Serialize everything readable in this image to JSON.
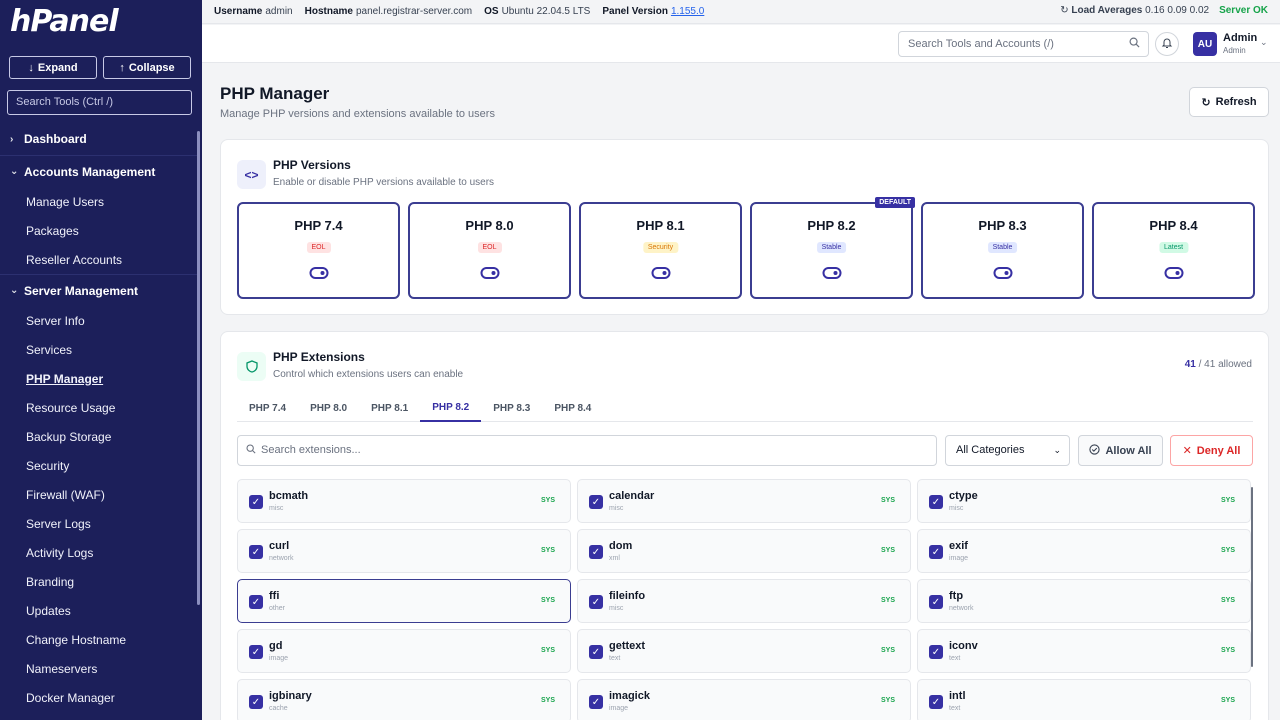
{
  "app": {
    "logo": "hPanel"
  },
  "sidebar": {
    "expand_label": "Expand",
    "collapse_label": "Collapse",
    "search_placeholder": "Search Tools (Ctrl /)",
    "dashboard": "Dashboard",
    "accounts_heading": "Accounts Management",
    "accounts_items": [
      "Manage Users",
      "Packages",
      "Reseller Accounts"
    ],
    "server_heading": "Server Management",
    "server_items": [
      "Server Info",
      "Services",
      "PHP Manager",
      "Resource Usage",
      "Backup Storage",
      "Security",
      "Firewall (WAF)",
      "Server Logs",
      "Activity Logs",
      "Branding",
      "Updates",
      "Change Hostname",
      "Nameservers",
      "Docker Manager"
    ],
    "active_item": "PHP Manager"
  },
  "topbar": {
    "username_label": "Username",
    "username": "admin",
    "hostname_label": "Hostname",
    "hostname": "panel.registrar-server.com",
    "os_label": "OS",
    "os": "Ubuntu 22.04.5 LTS",
    "version_label": "Panel Version",
    "version": "1.155.0",
    "load_label": "Load Averages",
    "load": "0.16 0.09 0.02",
    "status": "Server OK"
  },
  "header": {
    "search_placeholder": "Search Tools and Accounts (/)",
    "avatar_initials": "AU",
    "user_name": "Admin",
    "user_role": "Admin"
  },
  "page": {
    "title": "PHP Manager",
    "subtitle": "Manage PHP versions and extensions available to users",
    "refresh_label": "Refresh"
  },
  "versions_card": {
    "title": "PHP Versions",
    "subtitle": "Enable or disable PHP versions available to users",
    "default_tag": "DEFAULT",
    "versions": [
      {
        "name": "PHP 7.4",
        "badge": "EOL",
        "badge_type": "eol",
        "enabled": true
      },
      {
        "name": "PHP 8.0",
        "badge": "EOL",
        "badge_type": "eol",
        "enabled": true
      },
      {
        "name": "PHP 8.1",
        "badge": "Security",
        "badge_type": "sec",
        "enabled": true
      },
      {
        "name": "PHP 8.2",
        "badge": "Stable",
        "badge_type": "stable",
        "enabled": true,
        "default": true
      },
      {
        "name": "PHP 8.3",
        "badge": "Stable",
        "badge_type": "stable",
        "enabled": true
      },
      {
        "name": "PHP 8.4",
        "badge": "Latest",
        "badge_type": "latest",
        "enabled": true
      }
    ]
  },
  "extensions_card": {
    "title": "PHP Extensions",
    "subtitle": "Control which extensions users can enable",
    "allowed_count": "41",
    "allowed_total": "/ 41 allowed",
    "tabs": [
      "PHP 7.4",
      "PHP 8.0",
      "PHP 8.1",
      "PHP 8.2",
      "PHP 8.3",
      "PHP 8.4"
    ],
    "active_tab": "PHP 8.2",
    "search_placeholder": "Search extensions...",
    "category_value": "All Categories",
    "allow_all_label": "Allow All",
    "deny_all_label": "Deny All",
    "extensions": [
      {
        "name": "bcmath",
        "category": "misc",
        "tag": "SYS"
      },
      {
        "name": "calendar",
        "category": "misc",
        "tag": "SYS"
      },
      {
        "name": "ctype",
        "category": "misc",
        "tag": "SYS"
      },
      {
        "name": "curl",
        "category": "network",
        "tag": "SYS"
      },
      {
        "name": "dom",
        "category": "xml",
        "tag": "SYS"
      },
      {
        "name": "exif",
        "category": "image",
        "tag": "SYS"
      },
      {
        "name": "ffi",
        "category": "other",
        "tag": "SYS",
        "focused": true
      },
      {
        "name": "fileinfo",
        "category": "misc",
        "tag": "SYS"
      },
      {
        "name": "ftp",
        "category": "network",
        "tag": "SYS"
      },
      {
        "name": "gd",
        "category": "image",
        "tag": "SYS"
      },
      {
        "name": "gettext",
        "category": "text",
        "tag": "SYS"
      },
      {
        "name": "iconv",
        "category": "text",
        "tag": "SYS"
      },
      {
        "name": "igbinary",
        "category": "cache",
        "tag": "SYS"
      },
      {
        "name": "imagick",
        "category": "image",
        "tag": "SYS"
      },
      {
        "name": "intl",
        "category": "text",
        "tag": "SYS"
      }
    ]
  }
}
